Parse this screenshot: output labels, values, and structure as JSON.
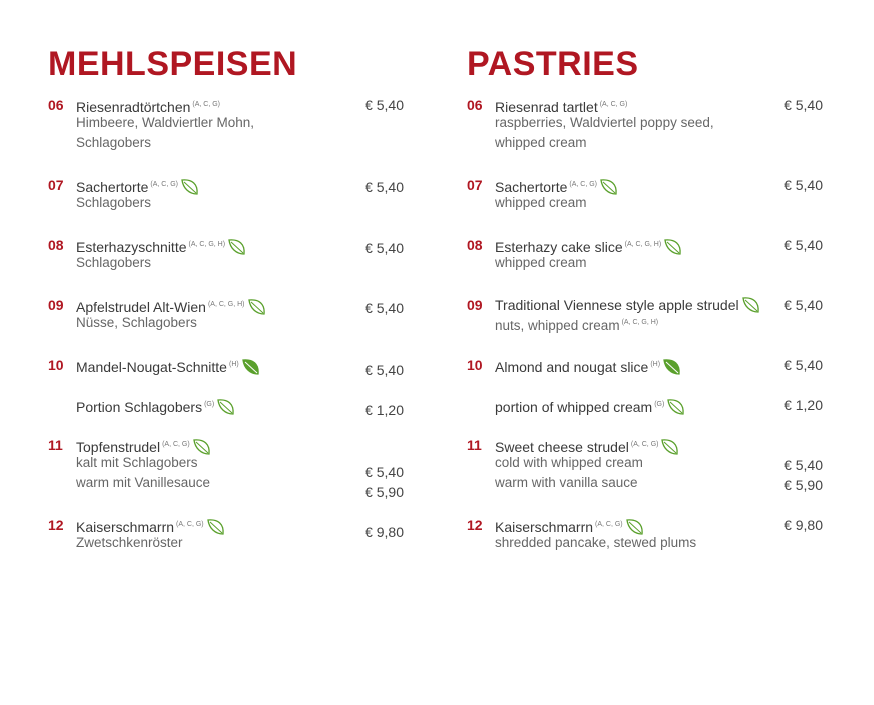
{
  "left": {
    "heading": "MEHLSPEISEN",
    "items": [
      {
        "num": "06",
        "name": "Riesenradtörtchen",
        "allergens": "(A, C, G)",
        "desc1": "Himbeere, Waldviertler Mohn,",
        "desc2": "Schlagobers",
        "price": "€ 5,40"
      },
      {
        "num": "07",
        "name": "Sachertorte",
        "allergens": "(A, C, G)",
        "desc1": "Schlagobers",
        "price": "€ 5,40"
      },
      {
        "num": "08",
        "name": "Esterhazyschnitte",
        "allergens": "(A, C, G, H)",
        "desc1": "Schlagobers",
        "price": "€ 5,40"
      },
      {
        "num": "09",
        "name": "Apfelstrudel Alt-Wien",
        "allergens": "(A, C, G, H)",
        "desc1": "Nüsse, Schlagobers",
        "price": "€ 5,40"
      },
      {
        "num": "10",
        "name": "Mandel-Nougat-Schnitte",
        "allergens": "(H)",
        "price": "€ 5,40"
      },
      {
        "num": "",
        "name": "Portion Schlagobers",
        "allergens": "(G)",
        "price": "€ 1,20"
      },
      {
        "num": "11",
        "name": "Topfenstrudel",
        "allergens": "(A, C, G)",
        "desc1": "kalt mit Schlagobers",
        "desc2": "warm mit Vanillesauce",
        "price": "€ 5,40",
        "price2": "€ 5,90"
      },
      {
        "num": "12",
        "name": "Kaiserschmarrn",
        "allergens": "(A, C, G)",
        "desc1": "Zwetschkenröster",
        "price": "€ 9,80"
      }
    ]
  },
  "right": {
    "heading": "PASTRIES",
    "items": [
      {
        "num": "06",
        "name": "Riesenrad tartlet",
        "allergens": "(A, C, G)",
        "desc1": "raspberries, Waldviertel poppy seed,",
        "desc2": "whipped cream",
        "price": "€ 5,40"
      },
      {
        "num": "07",
        "name": "Sachertorte",
        "allergens": "(A, C, G)",
        "desc1": "whipped cream",
        "price": "€ 5,40"
      },
      {
        "num": "08",
        "name": "Esterhazy cake slice",
        "allergens": "(A, C, G, H)",
        "desc1": "whipped cream",
        "price": "€ 5,40"
      },
      {
        "num": "09",
        "name": "Traditional Viennese style apple strudel",
        "desc1": "nuts, whipped cream",
        "desc1_allergens": "(A, C, G, H)",
        "price": "€ 5,40"
      },
      {
        "num": "10",
        "name": "Almond and nougat slice",
        "allergens": "(H)",
        "price": "€ 5,40"
      },
      {
        "num": "",
        "name": "portion of whipped cream",
        "allergens": "(G)",
        "price": "€ 1,20"
      },
      {
        "num": "11",
        "name": "Sweet cheese strudel",
        "allergens": "(A, C, G)",
        "desc1": "cold with whipped cream",
        "desc2": "warm with vanilla sauce",
        "price": "€ 5,40",
        "price2": "€ 5,90"
      },
      {
        "num": "12",
        "name": "Kaiserschmarrn",
        "allergens": "(A, C, G)",
        "desc1": "shredded pancake, stewed plums",
        "price": "€ 9,80"
      }
    ]
  },
  "icons": {
    "vegetarian": "leaf-outline-icon",
    "vegan": "leaf-filled-icon"
  },
  "colors": {
    "accent": "#b01722",
    "leaf_green": "#5aa02c",
    "text": "#3a3a3a",
    "desc_text": "#666666"
  }
}
